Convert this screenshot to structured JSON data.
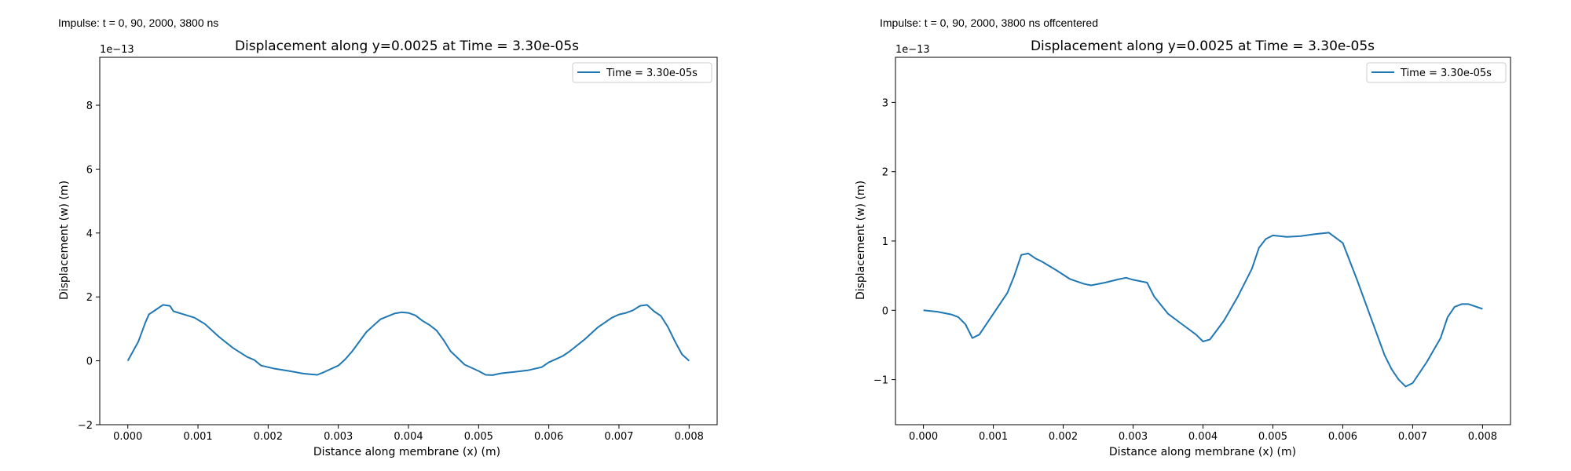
{
  "colors": {
    "series": "#1f77b4",
    "axes": "#000000",
    "legend_border": "#cccccc"
  },
  "chart_data": [
    {
      "type": "line",
      "header_text": "Impulse: t = 0, 90, 2000, 3800 ns",
      "title": "Displacement along y=0.0025 at Time = 3.30e-05s",
      "xlabel": "Distance along membrane (x) (m)",
      "ylabel": "Displacement (w) (m)",
      "offset_text": "1e−13",
      "xlim": [
        -0.0004,
        0.0084
      ],
      "ylim": [
        -2,
        9.5
      ],
      "xticks": [
        0,
        0.001,
        0.002,
        0.003,
        0.004,
        0.005,
        0.006,
        0.007,
        0.008
      ],
      "xtick_labels": [
        "0.000",
        "0.001",
        "0.002",
        "0.003",
        "0.004",
        "0.005",
        "0.006",
        "0.007",
        "0.008"
      ],
      "yticks": [
        -2,
        0,
        2,
        4,
        6,
        8
      ],
      "ytick_labels": [
        "−2",
        "0",
        "2",
        "4",
        "6",
        "8"
      ],
      "legend_position": "upper right",
      "series": [
        {
          "name": "Time = 3.30e-05s",
          "x": [
            0,
            0.00015,
            0.00025,
            0.0003,
            0.0004,
            0.0005,
            0.0006,
            0.00065,
            0.0008,
            0.00095,
            0.0011,
            0.0013,
            0.0015,
            0.0017,
            0.0018,
            0.0019,
            0.0021,
            0.0023,
            0.0025,
            0.0026,
            0.0027,
            0.0028,
            0.003,
            0.0031,
            0.0032,
            0.0034,
            0.0035,
            0.0036,
            0.0038,
            0.0039,
            0.004,
            0.0041,
            0.0042,
            0.0043,
            0.0044,
            0.0045,
            0.0046,
            0.0048,
            0.005,
            0.0051,
            0.0052,
            0.0053,
            0.0054,
            0.0055,
            0.0057,
            0.0059,
            0.006,
            0.0061,
            0.0062,
            0.0063,
            0.0065,
            0.0067,
            0.0069,
            0.007,
            0.0071,
            0.0072,
            0.0073,
            0.0074,
            0.0075,
            0.0076,
            0.0077,
            0.0078,
            0.0079,
            0.008
          ],
          "y": [
            0,
            0.6,
            1.2,
            1.45,
            1.6,
            1.75,
            1.72,
            1.55,
            1.45,
            1.35,
            1.15,
            0.75,
            0.4,
            0.12,
            0.03,
            -0.15,
            -0.25,
            -0.32,
            -0.4,
            -0.42,
            -0.44,
            -0.35,
            -0.15,
            0.05,
            0.3,
            0.9,
            1.1,
            1.3,
            1.48,
            1.52,
            1.5,
            1.42,
            1.25,
            1.12,
            0.95,
            0.65,
            0.3,
            -0.12,
            -0.32,
            -0.44,
            -0.45,
            -0.4,
            -0.37,
            -0.35,
            -0.3,
            -0.2,
            -0.05,
            0.05,
            0.15,
            0.3,
            0.65,
            1.05,
            1.35,
            1.45,
            1.5,
            1.58,
            1.72,
            1.75,
            1.55,
            1.4,
            1.05,
            0.6,
            0.2,
            0
          ]
        }
      ]
    },
    {
      "type": "line",
      "header_text": "Impulse: t = 0, 90, 2000, 3800 ns offcentered",
      "title": "Displacement along y=0.0025 at Time = 3.30e-05s",
      "xlabel": "Distance along membrane (x) (m)",
      "ylabel": "Displacement (w) (m)",
      "offset_text": "1e−13",
      "xlim": [
        -0.0004,
        0.0084
      ],
      "ylim": [
        -1.65,
        3.65
      ],
      "xticks": [
        0,
        0.001,
        0.002,
        0.003,
        0.004,
        0.005,
        0.006,
        0.007,
        0.008
      ],
      "xtick_labels": [
        "0.000",
        "0.001",
        "0.002",
        "0.003",
        "0.004",
        "0.005",
        "0.006",
        "0.007",
        "0.008"
      ],
      "yticks": [
        -1,
        0,
        1,
        2,
        3
      ],
      "ytick_labels": [
        "−1",
        "0",
        "1",
        "2",
        "3"
      ],
      "legend_position": "upper right",
      "series": [
        {
          "name": "Time = 3.30e-05s",
          "x": [
            0,
            0.0002,
            0.0004,
            0.0005,
            0.0006,
            0.0007,
            0.0008,
            0.001,
            0.0012,
            0.0013,
            0.0014,
            0.0015,
            0.0016,
            0.0017,
            0.0019,
            0.0021,
            0.0023,
            0.0024,
            0.0026,
            0.0028,
            0.0029,
            0.003,
            0.0032,
            0.0033,
            0.0035,
            0.0037,
            0.0039,
            0.004,
            0.0041,
            0.0043,
            0.0045,
            0.0047,
            0.0048,
            0.0049,
            0.005,
            0.0052,
            0.0054,
            0.0056,
            0.0058,
            0.006,
            0.0062,
            0.0064,
            0.0066,
            0.0067,
            0.0068,
            0.0069,
            0.007,
            0.0072,
            0.0074,
            0.0075,
            0.0076,
            0.0077,
            0.0078,
            0.008
          ],
          "y": [
            0,
            -0.02,
            -0.06,
            -0.1,
            -0.2,
            -0.4,
            -0.35,
            -0.05,
            0.25,
            0.5,
            0.8,
            0.82,
            0.75,
            0.7,
            0.58,
            0.45,
            0.38,
            0.36,
            0.4,
            0.45,
            0.47,
            0.44,
            0.4,
            0.2,
            -0.05,
            -0.2,
            -0.35,
            -0.45,
            -0.42,
            -0.15,
            0.2,
            0.6,
            0.9,
            1.03,
            1.08,
            1.06,
            1.07,
            1.1,
            1.12,
            0.97,
            0.45,
            -0.1,
            -0.65,
            -0.85,
            -1.0,
            -1.1,
            -1.05,
            -0.75,
            -0.4,
            -0.1,
            0.05,
            0.09,
            0.09,
            0.02
          ]
        }
      ]
    }
  ]
}
